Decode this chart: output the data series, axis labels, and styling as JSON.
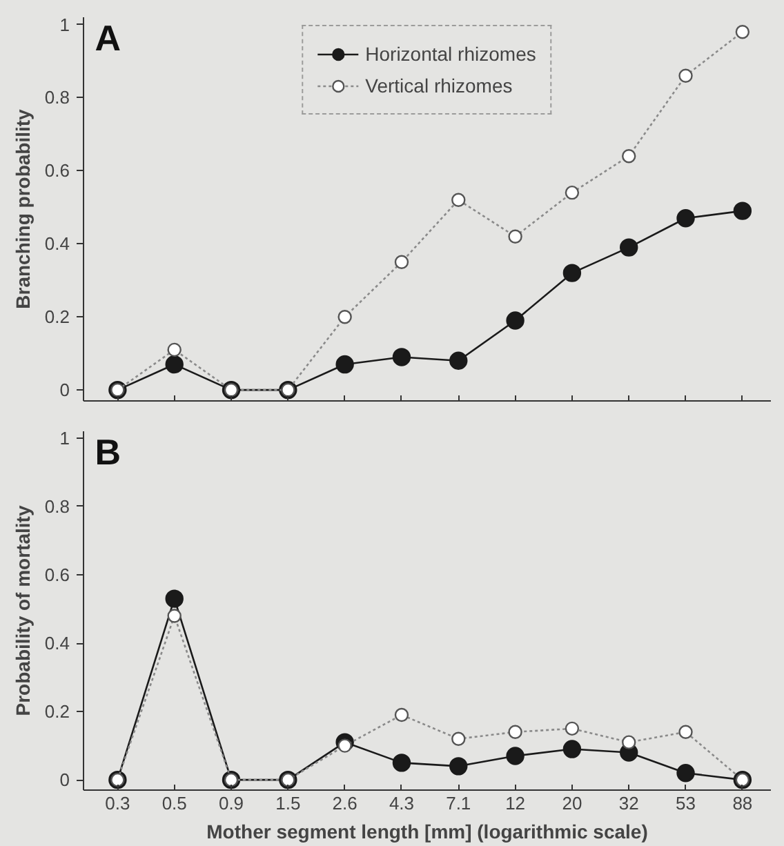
{
  "chart_data": [
    {
      "type": "line",
      "title": "A",
      "ylabel": "Branching probability",
      "categories": [
        "0.3",
        "0.5",
        "0.9",
        "1.5",
        "2.6",
        "4.3",
        "7.1",
        "12",
        "20",
        "32",
        "53",
        "88"
      ],
      "ylim": [
        -0.03,
        1.02
      ],
      "yticks": [
        0,
        0.2,
        0.4,
        0.6,
        0.8,
        1
      ],
      "tick_labels": "y",
      "legend": "top",
      "marker": "circle",
      "series": [
        {
          "name": "Horizontal rhizomes",
          "color": "#1a1a1a",
          "line_style": "solid",
          "values": [
            0,
            0.07,
            0,
            0,
            0.07,
            0.09,
            0.08,
            0.19,
            0.32,
            0.39,
            0.47,
            0.49
          ]
        },
        {
          "name": "Vertical rhizomes",
          "color": "#8a8a8a",
          "line_style": "dotted",
          "values": [
            0,
            0.11,
            0,
            0,
            0.2,
            0.35,
            0.52,
            0.42,
            0.54,
            0.64,
            0.86,
            0.98
          ]
        }
      ]
    },
    {
      "type": "line",
      "title": "B",
      "ylabel": "Probability of mortality",
      "xlabel": "Mother segment length [mm] (logarithmic scale)",
      "categories": [
        "0.3",
        "0.5",
        "0.9",
        "1.5",
        "2.6",
        "4.3",
        "7.1",
        "12",
        "20",
        "32",
        "53",
        "88"
      ],
      "ylim": [
        -0.03,
        1.02
      ],
      "yticks": [
        0,
        0.2,
        0.4,
        0.6,
        0.8,
        1
      ],
      "marker": "circle",
      "series": [
        {
          "color": "#1a1a1a",
          "line_style": "solid",
          "values": [
            0,
            0.53,
            0,
            0,
            0.11,
            0.05,
            0.04,
            0.07,
            0.09,
            0.08,
            0.02,
            0
          ]
        },
        {
          "color": "#8a8a8a",
          "line_style": "dotted",
          "values": [
            0,
            0.48,
            0,
            0,
            0.1,
            0.19,
            0.12,
            0.14,
            0.15,
            0.11,
            0.14,
            0
          ]
        }
      ]
    }
  ]
}
